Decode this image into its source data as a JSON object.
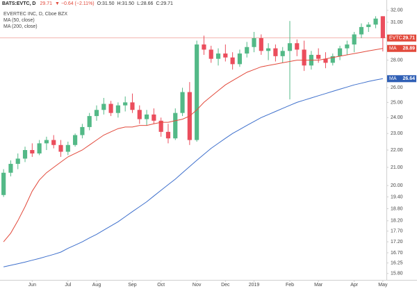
{
  "chart_data": {
    "type": "candlestick",
    "title": "BATS:EVTC, D",
    "quote": [
      "29.71",
      "▼ −0.64 (−2.11%)",
      "O:31.50",
      "H:31.50",
      "L:28.66",
      "C:29.71"
    ],
    "log_scale": true,
    "ylim": [
      15.53,
      32.9
    ],
    "yticks": [
      {
        "value": 32,
        "label": "32.00"
      },
      {
        "value": 31,
        "label": "31.00"
      },
      {
        "value": 28,
        "label": "28.00"
      },
      {
        "value": 26,
        "label": "26.00"
      },
      {
        "value": 25,
        "label": "25.00"
      },
      {
        "value": 24,
        "label": "24.00"
      },
      {
        "value": 23,
        "label": "23.00"
      },
      {
        "value": 22,
        "label": "22.00"
      },
      {
        "value": 21,
        "label": "21.00"
      },
      {
        "value": 20,
        "label": "20.00"
      },
      {
        "value": 19.4,
        "label": "19.40"
      },
      {
        "value": 18.8,
        "label": "18.80"
      },
      {
        "value": 18.2,
        "label": "18.20"
      },
      {
        "value": 17.7,
        "label": "17.70"
      },
      {
        "value": 17.2,
        "label": "17.20"
      },
      {
        "value": 16.7,
        "label": "16.70"
      },
      16.25,
      {
        "value": 15.8,
        "label": "15.80"
      }
    ],
    "categories": [
      null,
      null,
      null,
      null,
      "Jun",
      null,
      null,
      null,
      null,
      "Jul",
      null,
      null,
      null,
      "Aug",
      null,
      null,
      null,
      null,
      "Sep",
      null,
      null,
      null,
      "Oct",
      null,
      null,
      null,
      null,
      "Nov",
      null,
      null,
      null,
      "Dec",
      null,
      null,
      null,
      "2019",
      null,
      null,
      null,
      null,
      "Feb",
      null,
      null,
      null,
      "Mar",
      null,
      null,
      null,
      null,
      "Apr",
      null,
      null,
      null,
      "May"
    ],
    "series": [
      {
        "name": "EVERTEC INC, D, Cboe BZX",
        "up_color": "#53b987",
        "down_color": "#eb4d5c",
        "open": [
          19.5,
          20.7,
          21.2,
          21.5,
          22.0,
          21.8,
          22.4,
          22.6,
          22.3,
          21.9,
          22.3,
          22.9,
          23.4,
          24.1,
          24.5,
          24.9,
          24.3,
          24.8,
          25.0,
          24.5,
          23.9,
          24.2,
          23.8,
          23.1,
          22.7,
          24.3,
          25.7,
          22.6,
          29.2,
          28.8,
          28.1,
          28.5,
          28.2,
          27.7,
          28.5,
          29.0,
          29.7,
          28.7,
          28.9,
          28.3,
          28.7,
          29.3,
          28.8,
          27.6,
          28.4,
          28.1,
          27.8,
          28.3,
          28.9,
          29.2,
          30.0,
          30.6,
          30.8,
          31.5
        ],
        "high": [
          20.9,
          21.4,
          21.8,
          22.2,
          22.4,
          22.6,
          22.8,
          22.9,
          22.6,
          22.5,
          23.0,
          23.6,
          24.3,
          24.8,
          25.3,
          25.1,
          25.0,
          25.4,
          25.6,
          24.8,
          24.5,
          24.6,
          24.0,
          23.6,
          24.6,
          26.0,
          26.4,
          29.5,
          29.9,
          29.1,
          28.9,
          29.2,
          28.6,
          28.8,
          29.4,
          30.2,
          30.0,
          29.3,
          29.2,
          29.0,
          31.1,
          29.6,
          29.5,
          28.7,
          28.9,
          28.6,
          28.5,
          29.1,
          29.5,
          30.2,
          30.9,
          31.0,
          31.5,
          31.5
        ],
        "low": [
          19.4,
          20.5,
          20.9,
          21.3,
          21.6,
          21.7,
          22.0,
          22.1,
          21.6,
          21.7,
          22.2,
          22.7,
          23.2,
          23.8,
          24.2,
          24.1,
          24.0,
          24.4,
          24.3,
          23.6,
          23.5,
          23.6,
          22.8,
          22.4,
          22.6,
          24.1,
          22.3,
          22.5,
          28.4,
          27.8,
          27.6,
          27.9,
          27.3,
          27.5,
          28.2,
          28.6,
          28.4,
          28.0,
          27.9,
          27.8,
          25.2,
          28.3,
          27.2,
          27.3,
          27.8,
          27.4,
          27.6,
          28.0,
          28.4,
          28.6,
          29.7,
          30.2,
          30.5,
          28.66
        ],
        "close": [
          20.7,
          21.2,
          21.5,
          22.0,
          21.8,
          22.4,
          22.6,
          22.3,
          21.9,
          22.3,
          22.9,
          23.4,
          24.1,
          24.5,
          24.9,
          24.3,
          24.8,
          25.0,
          24.5,
          23.9,
          24.2,
          23.8,
          23.1,
          22.7,
          24.3,
          25.7,
          22.6,
          29.2,
          28.8,
          28.1,
          28.5,
          28.2,
          27.7,
          28.5,
          29.0,
          29.7,
          28.7,
          28.9,
          28.3,
          28.7,
          29.3,
          28.8,
          27.6,
          28.4,
          28.1,
          27.8,
          28.3,
          28.9,
          29.2,
          30.0,
          30.6,
          30.8,
          31.3,
          29.71
        ]
      },
      {
        "name": "MA (50, close)",
        "color": "#e2493b",
        "values": [
          17.2,
          17.6,
          18.2,
          18.9,
          19.7,
          20.3,
          20.7,
          21.0,
          21.3,
          21.6,
          21.8,
          22.0,
          22.3,
          22.6,
          22.9,
          23.1,
          23.3,
          23.4,
          23.4,
          23.5,
          23.5,
          23.6,
          23.7,
          23.7,
          23.8,
          23.9,
          24.1,
          24.5,
          25.0,
          25.4,
          25.8,
          26.2,
          26.5,
          26.8,
          27.1,
          27.3,
          27.5,
          27.6,
          27.7,
          27.8,
          27.9,
          28.0,
          28.0,
          28.0,
          28.0,
          28.1,
          28.2,
          28.3,
          28.4,
          28.5,
          28.6,
          28.7,
          28.8,
          28.89
        ]
      },
      {
        "name": "MA (200, close)",
        "color": "#3d6fcc",
        "values": [
          16.08,
          16.15,
          16.22,
          16.29,
          16.37,
          16.45,
          16.54,
          16.63,
          16.73,
          16.9,
          17.05,
          17.2,
          17.38,
          17.55,
          17.75,
          17.95,
          18.15,
          18.4,
          18.65,
          18.9,
          19.15,
          19.45,
          19.75,
          20.05,
          20.35,
          20.7,
          21.05,
          21.4,
          21.75,
          22.1,
          22.4,
          22.7,
          23.0,
          23.25,
          23.5,
          23.75,
          24.0,
          24.2,
          24.4,
          24.6,
          24.8,
          25.0,
          25.15,
          25.3,
          25.45,
          25.6,
          25.75,
          25.9,
          26.05,
          26.2,
          26.32,
          26.44,
          26.55,
          26.64
        ]
      }
    ],
    "price_labels": [
      {
        "name": "EVTC",
        "value": 29.71,
        "color": "#e2493b"
      },
      {
        "name": "MA",
        "value": 28.89,
        "color": "#e2493b"
      },
      {
        "name": "MA",
        "value": 26.64,
        "color": "#2f5fb5"
      }
    ]
  }
}
